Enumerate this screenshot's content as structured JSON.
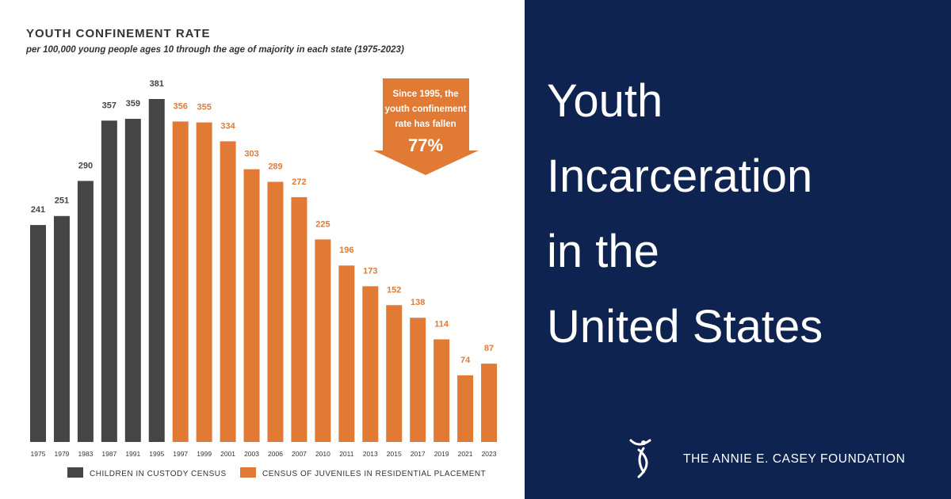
{
  "chart_data": {
    "type": "bar",
    "title": "YOUTH CONFINEMENT RATE",
    "subtitle": "per 100,000 young people ages 10 through the age of majority in each state (1975-2023)",
    "categories": [
      "1975",
      "1979",
      "1983",
      "1987",
      "1991",
      "1995",
      "1997",
      "1999",
      "2001",
      "2003",
      "2006",
      "2007",
      "2010",
      "2011",
      "2013",
      "2015",
      "2017",
      "2019",
      "2021",
      "2023"
    ],
    "series": [
      {
        "name": "CHILDREN IN CUSTODY CENSUS",
        "color": "#454545",
        "values": [
          241,
          251,
          290,
          357,
          359,
          381,
          null,
          null,
          null,
          null,
          null,
          null,
          null,
          null,
          null,
          null,
          null,
          null,
          null,
          null
        ]
      },
      {
        "name": "CENSUS OF JUVENILES IN RESIDENTIAL PLACEMENT",
        "color": "#e07a35",
        "values": [
          null,
          null,
          null,
          null,
          null,
          null,
          356,
          355,
          334,
          303,
          289,
          272,
          225,
          196,
          173,
          152,
          138,
          114,
          74,
          87
        ]
      }
    ],
    "annotation": {
      "lines": [
        "Since 1995, the",
        "youth confinement",
        "rate has fallen"
      ],
      "figure": "77%"
    }
  },
  "panel": {
    "headline": [
      "Youth",
      "Incarceration",
      "in the",
      "United States"
    ],
    "brand": "THE ANNIE E. CASEY FOUNDATION"
  }
}
